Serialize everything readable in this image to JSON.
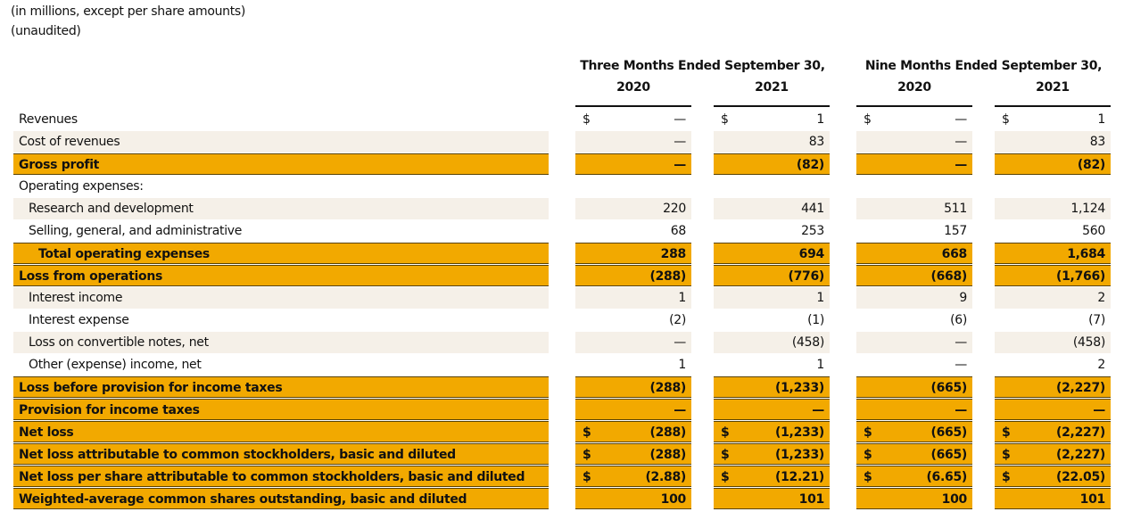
{
  "notes": [
    "(in millions, except per share amounts)",
    "(unaudited)"
  ],
  "header": {
    "groups": [
      "Three Months Ended September 30,",
      "Nine Months Ended September 30,"
    ],
    "years": [
      "2020",
      "2021",
      "2020",
      "2021"
    ]
  },
  "currency_symbol": "$",
  "rows": [
    {
      "label": "Revenues",
      "style": "plain",
      "indent": 0,
      "currency": true,
      "values": [
        "—",
        "1",
        "—",
        "1"
      ]
    },
    {
      "label": "Cost of revenues",
      "style": "shaded",
      "indent": 0,
      "currency": false,
      "values": [
        "—",
        "83",
        "—",
        "83"
      ]
    },
    {
      "label": "Gross profit",
      "style": "highlight",
      "indent": 0,
      "currency": false,
      "values": [
        "—",
        "(82)",
        "—",
        "(82)"
      ]
    },
    {
      "label": "Operating expenses:",
      "style": "plain",
      "indent": 0,
      "currency": false,
      "values": [
        "",
        "",
        "",
        ""
      ]
    },
    {
      "label": "Research and development",
      "style": "shaded",
      "indent": 1,
      "currency": false,
      "values": [
        "220",
        "441",
        "511",
        "1,124"
      ]
    },
    {
      "label": "Selling, general, and administrative",
      "style": "plain",
      "indent": 1,
      "currency": false,
      "values": [
        "68",
        "253",
        "157",
        "560"
      ]
    },
    {
      "label": "Total operating expenses",
      "style": "highlight",
      "indent": 2,
      "currency": false,
      "values": [
        "288",
        "694",
        "668",
        "1,684"
      ]
    },
    {
      "label": "Loss from operations",
      "style": "highlight",
      "indent": 0,
      "currency": false,
      "values": [
        "(288)",
        "(776)",
        "(668)",
        "(1,766)"
      ]
    },
    {
      "label": "Interest income",
      "style": "shaded",
      "indent": 1,
      "currency": false,
      "values": [
        "1",
        "1",
        "9",
        "2"
      ]
    },
    {
      "label": "Interest expense",
      "style": "plain",
      "indent": 1,
      "currency": false,
      "values": [
        "(2)",
        "(1)",
        "(6)",
        "(7)"
      ]
    },
    {
      "label": "Loss on convertible notes, net",
      "style": "shaded",
      "indent": 1,
      "currency": false,
      "values": [
        "—",
        "(458)",
        "—",
        "(458)"
      ]
    },
    {
      "label": "Other (expense) income, net",
      "style": "plain",
      "indent": 1,
      "currency": false,
      "values": [
        "1",
        "1",
        "—",
        "2"
      ]
    },
    {
      "label": "Loss before provision for income taxes",
      "style": "highlight",
      "indent": 0,
      "currency": false,
      "values": [
        "(288)",
        "(1,233)",
        "(665)",
        "(2,227)"
      ]
    },
    {
      "label": "Provision for income taxes",
      "style": "highlight",
      "indent": 0,
      "currency": false,
      "values": [
        "—",
        "—",
        "—",
        "—"
      ]
    },
    {
      "label": "Net loss",
      "style": "highlight",
      "indent": 0,
      "currency": true,
      "values": [
        "(288)",
        "(1,233)",
        "(665)",
        "(2,227)"
      ]
    },
    {
      "label": "Net loss attributable to common stockholders, basic and diluted",
      "style": "highlight",
      "indent": 0,
      "currency": true,
      "values": [
        "(288)",
        "(1,233)",
        "(665)",
        "(2,227)"
      ]
    },
    {
      "label": "Net loss per share attributable to common stockholders, basic and diluted",
      "style": "highlight",
      "indent": 0,
      "currency": true,
      "values": [
        "(2.88)",
        "(12.21)",
        "(6.65)",
        "(22.05)"
      ]
    },
    {
      "label": "Weighted-average common shares outstanding, basic and diluted",
      "style": "highlight",
      "indent": 0,
      "currency": false,
      "values": [
        "100",
        "101",
        "100",
        "101"
      ]
    }
  ]
}
